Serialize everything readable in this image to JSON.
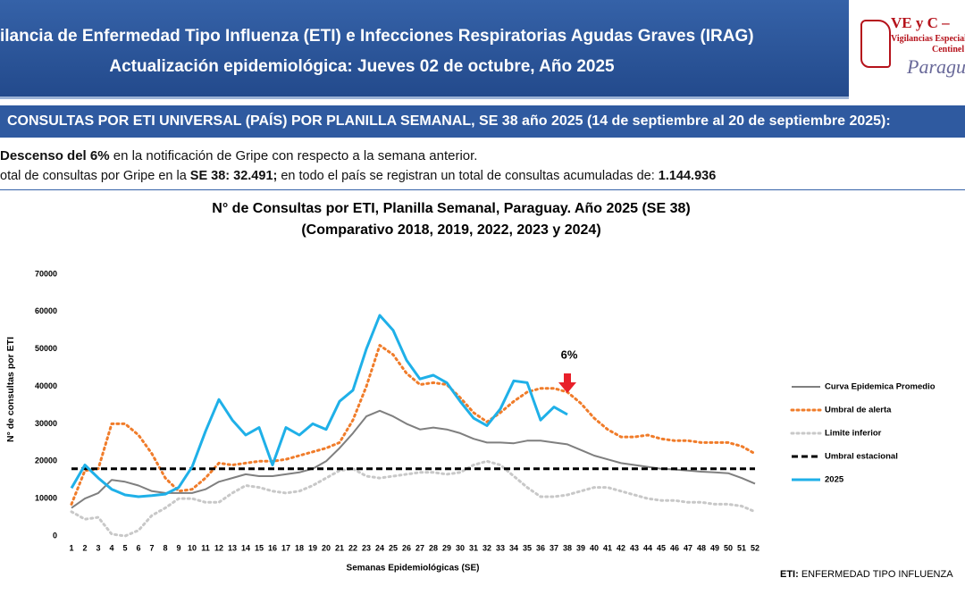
{
  "header": {
    "title": "ilancia de Enfermedad Tipo Influenza (ETI) e Infecciones Respiratorias Agudas Graves (IRAG)",
    "subtitle": "Actualización epidemiológica: Jueves 02 de octubre, Año 2025"
  },
  "logo": {
    "name": "VE y C –",
    "line1": "Vigilancias Especiales y",
    "line2": "Centinel",
    "line3": "Paragua"
  },
  "section": "CONSULTAS POR ETI UNIVERSAL (PAÍS) POR PLANILLA SEMANAL, SE 38 año 2025 (14 de septiembre al 20 de septiembre 2025):",
  "summary": {
    "line1": [
      {
        "text": "Descenso del 6%",
        "bold": true
      },
      {
        "text": " en la notificación de Gripe con respecto a la semana anterior.",
        "bold": false
      }
    ],
    "line2": [
      {
        "text": "otal de consultas por Gripe en la ",
        "bold": false
      },
      {
        "text": "SE 38: 32.491;",
        "bold": true
      },
      {
        "text": " en todo el país se registran un total de consultas acumuladas de: ",
        "bold": false
      },
      {
        "text": "1.144.936",
        "bold": true
      }
    ]
  },
  "footnote": [
    {
      "text": "ETI:",
      "bold": true
    },
    {
      "text": " ENFERMEDAD TIPO INFLUENZA",
      "bold": false
    }
  ],
  "chart_data": {
    "type": "line",
    "title": "N° de Consultas por ETI, Planilla Semanal, Paraguay. Año 2025  (SE 38)",
    "subtitle": "(Comparativo 2018, 2019, 2022, 2023 y 2024)",
    "x_label": "Semanas Epidemiológicas (SE)",
    "y_label": "N° de consultas por ETI",
    "categories": [
      1,
      2,
      3,
      4,
      5,
      6,
      7,
      8,
      9,
      10,
      11,
      12,
      13,
      14,
      15,
      16,
      17,
      18,
      19,
      20,
      21,
      22,
      23,
      24,
      25,
      26,
      27,
      28,
      29,
      30,
      31,
      32,
      33,
      34,
      35,
      36,
      37,
      38,
      39,
      40,
      41,
      42,
      43,
      44,
      45,
      46,
      47,
      48,
      49,
      50,
      51,
      52
    ],
    "ylim": [
      0,
      70000
    ],
    "yticks": [
      0,
      10000,
      20000,
      30000,
      40000,
      50000,
      60000,
      70000
    ],
    "legend": "right",
    "series": [
      {
        "name": "Curva Epidemica Promedio",
        "color": "#7f7f7f",
        "style": "solid",
        "values": [
          7500,
          10000,
          11500,
          15000,
          14500,
          13500,
          12000,
          11500,
          11500,
          11500,
          12500,
          14500,
          15500,
          16500,
          16000,
          16000,
          16500,
          17000,
          18000,
          20000,
          23500,
          27500,
          32000,
          33500,
          32000,
          30000,
          28500,
          29000,
          28500,
          27500,
          26000,
          25000,
          25000,
          24800,
          25500,
          25500,
          25000,
          24500,
          23000,
          21500,
          20500,
          19500,
          19000,
          18500,
          18000,
          17800,
          17500,
          17200,
          17000,
          16800,
          15500,
          14000
        ]
      },
      {
        "name": "Umbral de alerta",
        "color": "#f07c2a",
        "style": "dotted",
        "values": [
          8500,
          17500,
          18000,
          30000,
          30000,
          27000,
          22000,
          15500,
          12000,
          12500,
          15500,
          19500,
          19000,
          19500,
          20000,
          20000,
          20500,
          21500,
          22500,
          23500,
          25000,
          31000,
          40000,
          51000,
          48500,
          43500,
          40500,
          41000,
          40500,
          37000,
          33000,
          30500,
          33000,
          36000,
          38500,
          39500,
          39500,
          38500,
          35500,
          31500,
          28500,
          26500,
          26500,
          27000,
          26000,
          25500,
          25500,
          25000,
          25000,
          25000,
          24000,
          22000
        ]
      },
      {
        "name": "Limite inferior",
        "color": "#c8c8c8",
        "style": "dotted",
        "values": [
          6500,
          4500,
          5000,
          500,
          0,
          1500,
          5500,
          7500,
          10000,
          10000,
          9000,
          9000,
          11500,
          13500,
          13000,
          12000,
          11500,
          12000,
          13500,
          15500,
          17500,
          18000,
          16000,
          15500,
          16000,
          16500,
          17000,
          17000,
          16500,
          17000,
          19000,
          20000,
          19000,
          16000,
          13000,
          10500,
          10500,
          11000,
          12000,
          13000,
          13000,
          12000,
          11000,
          10000,
          9500,
          9500,
          9000,
          9000,
          8500,
          8500,
          8000,
          6500
        ]
      },
      {
        "name": "Umbral estacional",
        "color": "#000000",
        "style": "dashed",
        "values": [
          18000,
          18000,
          18000,
          18000,
          18000,
          18000,
          18000,
          18000,
          18000,
          18000,
          18000,
          18000,
          18000,
          18000,
          18000,
          18000,
          18000,
          18000,
          18000,
          18000,
          18000,
          18000,
          18000,
          18000,
          18000,
          18000,
          18000,
          18000,
          18000,
          18000,
          18000,
          18000,
          18000,
          18000,
          18000,
          18000,
          18000,
          18000,
          18000,
          18000,
          18000,
          18000,
          18000,
          18000,
          18000,
          18000,
          18000,
          18000,
          18000,
          18000,
          18000,
          18000
        ]
      },
      {
        "name": "2025",
        "color": "#1fb0e8",
        "style": "solid",
        "width": 3,
        "values": [
          12800,
          19000,
          15500,
          12500,
          11000,
          10500,
          10800,
          11200,
          13000,
          18500,
          28000,
          36500,
          31000,
          27000,
          29000,
          19000,
          29000,
          27000,
          30000,
          28500,
          36000,
          39000,
          50000,
          59000,
          55000,
          47000,
          42000,
          43000,
          41000,
          36000,
          31500,
          29500,
          34000,
          41500,
          41000,
          31000,
          34500,
          32491,
          null,
          null,
          null,
          null,
          null,
          null,
          null,
          null,
          null,
          null,
          null,
          null,
          null,
          null
        ]
      }
    ],
    "annotations": [
      {
        "text": "6%",
        "category_index": 37,
        "color": "#e8202a"
      }
    ]
  }
}
